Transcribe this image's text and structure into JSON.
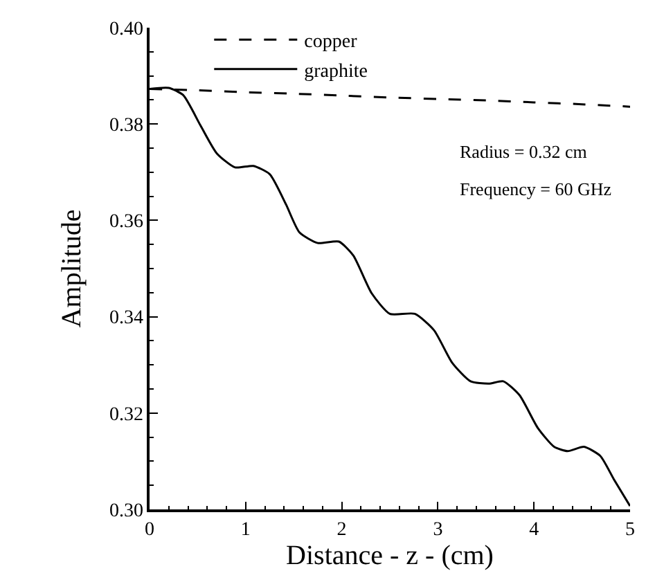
{
  "chart_data": {
    "type": "line",
    "xlabel": "Distance - z - (cm)",
    "ylabel": "Amplitude",
    "xlim": [
      0,
      5
    ],
    "xticks": [
      0,
      1,
      2,
      3,
      4,
      5
    ],
    "ylim": [
      0.3,
      0.4
    ],
    "yticks": [
      {
        "value": 0.3,
        "label": "0.30"
      },
      {
        "value": 0.32,
        "label": "0.32"
      },
      {
        "value": 0.34,
        "label": "0.34"
      },
      {
        "value": 0.36,
        "label": "0.36"
      },
      {
        "value": 0.38,
        "label": "0.38"
      },
      {
        "value": 0.4,
        "label": "0.40"
      }
    ],
    "legend": "top",
    "marker": "none",
    "annotations": [
      "Radius = 0.32 cm",
      "Frequency = 60 GHz"
    ],
    "series": [
      {
        "name": "copper",
        "color": "#000000",
        "line_style": "dashed",
        "x": [
          0,
          0.5,
          1,
          1.5,
          2,
          2.5,
          3,
          3.5,
          4,
          4.5,
          5
        ],
        "values": [
          0.3873,
          0.387,
          0.3866,
          0.3863,
          0.3859,
          0.3855,
          0.3852,
          0.3849,
          0.3845,
          0.3841,
          0.3836
        ]
      },
      {
        "name": "graphite",
        "color": "#000000",
        "line_style": "solid",
        "x": [
          0,
          0.2,
          0.35,
          0.53,
          0.7,
          0.89,
          1.08,
          1.25,
          1.42,
          1.56,
          1.75,
          1.97,
          2.12,
          2.31,
          2.5,
          2.76,
          2.96,
          3.15,
          3.34,
          3.53,
          3.68,
          3.85,
          4.04,
          4.21,
          4.35,
          4.52,
          4.69,
          4.83,
          5.0
        ],
        "values": [
          0.3873,
          0.3875,
          0.386,
          0.3797,
          0.3739,
          0.371,
          0.3713,
          0.3696,
          0.3633,
          0.3575,
          0.3553,
          0.3556,
          0.3527,
          0.3449,
          0.3406,
          0.3406,
          0.3372,
          0.3304,
          0.3266,
          0.3261,
          0.3266,
          0.3237,
          0.3169,
          0.313,
          0.3121,
          0.313,
          0.3111,
          0.3063,
          0.3007
        ]
      }
    ]
  }
}
